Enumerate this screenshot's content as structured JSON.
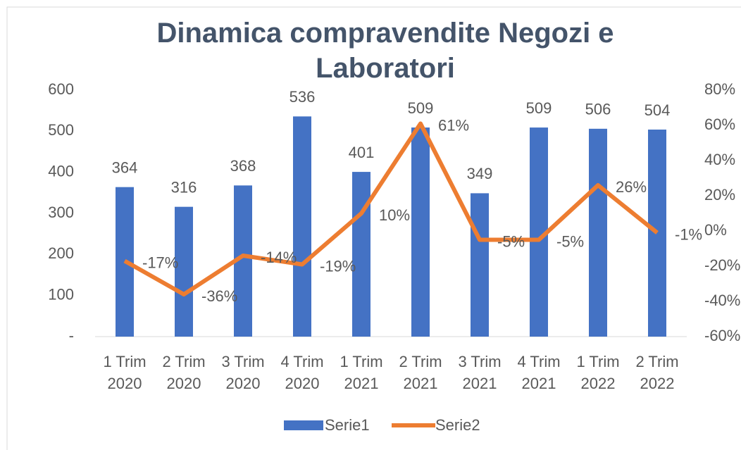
{
  "chart_data": {
    "type": "bar-line",
    "title": "Dinamica compravendite Negozi e Laboratori",
    "categories": [
      "1 Trim 2020",
      "2 Trim 2020",
      "3 Trim 2020",
      "4 Trim 2020",
      "1 Trim 2021",
      "2 Trim 2021",
      "3 Trim 2021",
      "4 Trim 2021",
      "1 Trim 2022",
      "2 Trim 2022"
    ],
    "series": [
      {
        "name": "Serie1",
        "color": "#4472c4",
        "type": "bar",
        "values": [
          364,
          316,
          368,
          536,
          401,
          509,
          349,
          509,
          506,
          504
        ]
      },
      {
        "name": "Serie2",
        "color": "#ed7d31",
        "type": "line",
        "axis": "y2",
        "values": [
          -17,
          -36,
          -14,
          -19,
          10,
          61,
          -5,
          -5,
          26,
          -1
        ],
        "value_labels": [
          "-17%",
          "-36%",
          "-14%",
          "-19%",
          "10%",
          "61%",
          "-5%",
          "-5%",
          "26%",
          "-1%"
        ]
      }
    ],
    "ylim": [
      0,
      600
    ],
    "yticks": [
      {
        "value": 0,
        "label": "-"
      },
      100,
      200,
      300,
      400,
      500,
      600
    ],
    "y2lim": [
      -60,
      80
    ],
    "y2ticks": [
      {
        "value": -60,
        "label": "-60%"
      },
      {
        "value": -40,
        "label": "-40%"
      },
      {
        "value": -20,
        "label": "-20%"
      },
      {
        "value": 0,
        "label": "0%"
      },
      {
        "value": 20,
        "label": "20%"
      },
      {
        "value": 40,
        "label": "40%"
      },
      {
        "value": 60,
        "label": "60%"
      },
      {
        "value": 80,
        "label": "80%"
      }
    ],
    "legend": "bottom"
  }
}
